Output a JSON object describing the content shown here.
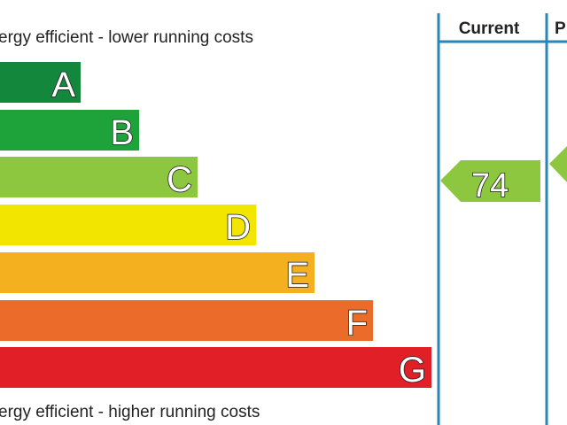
{
  "chart_data": {
    "type": "bar",
    "top_caption": "ergy efficient - lower running costs",
    "bottom_caption": "ergy efficient - higher running costs",
    "categories": [
      "A",
      "B",
      "C",
      "D",
      "E",
      "F",
      "G"
    ],
    "colors": [
      "#13883d",
      "#1ea33a",
      "#8dc63f",
      "#f2e500",
      "#f4b01f",
      "#eb6b2a",
      "#e11f26"
    ],
    "columns": [
      {
        "label": "Current",
        "value": "74",
        "band": "C"
      },
      {
        "label": "P",
        "value": "",
        "band": "C"
      }
    ],
    "line_color": "#2a86b5"
  }
}
